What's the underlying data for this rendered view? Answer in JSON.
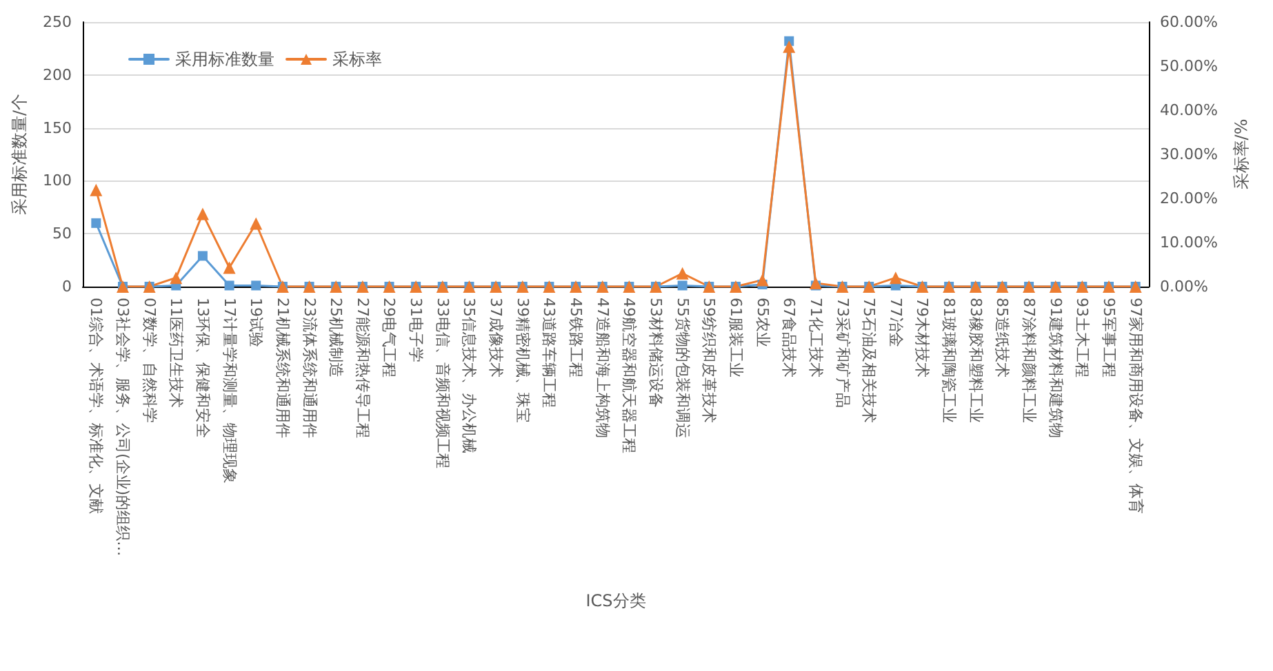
{
  "chart_data": {
    "type": "line",
    "xlabel": "ICS分类",
    "ylabel": "采用标准数量/个",
    "y2label": "采标率/%",
    "categories": [
      "01综合、术语学、标准化、文献",
      "03社会学、服务、公司(企业)的组织…",
      "07数学、自然科学",
      "11医药卫生技术",
      "13环保、保健和安全",
      "17计量学和测量、物理现象",
      "19试验",
      "21机械系统和通用件",
      "23流体系统和通用件",
      "25机械制造",
      "27能源和热传导工程",
      "29电气工程",
      "31电子学",
      "33电信、音频和视频工程",
      "35信息技术、办公机械",
      "37成像技术",
      "39精密机械、珠宝",
      "43道路车辆工程",
      "45铁路工程",
      "47造船和海上构筑物",
      "49航空器和航天器工程",
      "53材料储运设备",
      "55货物的包装和调运",
      "59纺织和皮革技术",
      "61服装工业",
      "65农业",
      "67食品技术",
      "71化工技术",
      "73采矿和矿产品",
      "75石油及相关技术",
      "77冶金",
      "79木材技术",
      "81玻璃和陶瓷工业",
      "83橡胶和塑料工业",
      "85造纸技术",
      "87涂料和颜料工业",
      "91建筑材料和建筑物",
      "93土木工程",
      "95军事工程",
      "97家用和商用设备、文娱、体育"
    ],
    "series": [
      {
        "name": "采用标准数量",
        "color": "#5b9bd5",
        "marker": "square",
        "values": [
          60,
          0,
          0,
          1,
          29,
          1,
          1,
          0,
          0,
          0,
          0,
          0,
          0,
          0,
          0,
          0,
          0,
          0,
          0,
          0,
          0,
          0,
          1,
          0,
          0,
          2,
          232,
          1,
          0,
          0,
          1,
          0,
          0,
          0,
          0,
          0,
          0,
          0,
          0,
          0
        ]
      },
      {
        "name": "采标率",
        "color": "#ed7d31",
        "marker": "triangle",
        "axis": "y2",
        "values": [
          21.9,
          0,
          0,
          2,
          16.5,
          4.3,
          14.3,
          0,
          0,
          0,
          0,
          0,
          0,
          0,
          0,
          0,
          0,
          0,
          0,
          0,
          0,
          0,
          3,
          0,
          0,
          1.5,
          54.4,
          0.8,
          0,
          0,
          2,
          0,
          0,
          0,
          0,
          0,
          0,
          0,
          0,
          0
        ]
      }
    ],
    "ylim": [
      0,
      250
    ],
    "yticks": [
      0,
      50,
      100,
      150,
      200,
      250
    ],
    "y2lim": [
      0,
      60
    ],
    "y2ticks": [
      {
        "value": 0,
        "label": "0.00%"
      },
      {
        "value": 10,
        "label": "10.00%"
      },
      {
        "value": 20,
        "label": "20.00%"
      },
      {
        "value": 30,
        "label": "30.00%"
      },
      {
        "value": 40,
        "label": "40.00%"
      },
      {
        "value": 50,
        "label": "50.00%"
      },
      {
        "value": 60,
        "label": "60.00%"
      }
    ],
    "grid": "y",
    "legend": "top left"
  }
}
